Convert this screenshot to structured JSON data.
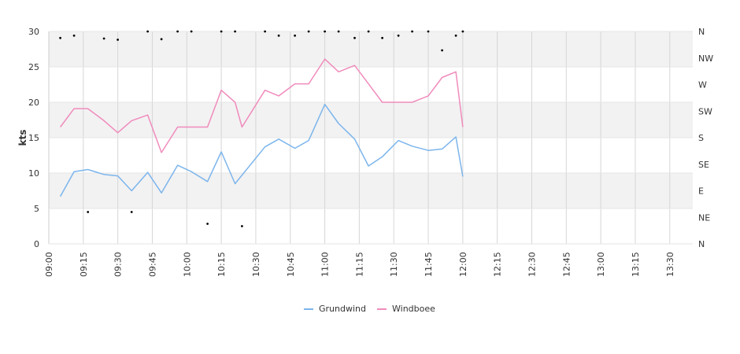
{
  "chart_data": {
    "type": "line",
    "ylabel": "kts",
    "ylim": [
      0,
      30
    ],
    "y_ticks": [
      0,
      5,
      10,
      15,
      20,
      25,
      30
    ],
    "x_start": "09:00",
    "x_end": "13:40",
    "x_tick_labels": [
      "09:00",
      "09:15",
      "09:30",
      "09:45",
      "10:00",
      "10:15",
      "10:30",
      "10:45",
      "11:00",
      "11:15",
      "11:30",
      "11:45",
      "12:00",
      "12:15",
      "12:30",
      "12:45",
      "13:00",
      "13:15",
      "13:30"
    ],
    "direction_axis": {
      "labels": [
        "N",
        "NE",
        "E",
        "SE",
        "S",
        "SW",
        "W",
        "NW",
        "N"
      ],
      "range_degrees": [
        0,
        360
      ]
    },
    "grid": true,
    "band_fill": "#f2f2f2",
    "legend_position": "bottom",
    "series": [
      {
        "name": "Grundwind",
        "color": "#7cb5ec",
        "points": [
          [
            "09:05",
            6.7
          ],
          [
            "09:11",
            10.2
          ],
          [
            "09:17",
            10.5
          ],
          [
            "09:24",
            9.8
          ],
          [
            "09:30",
            9.6
          ],
          [
            "09:36",
            7.5
          ],
          [
            "09:43",
            10.1
          ],
          [
            "09:49",
            7.2
          ],
          [
            "09:56",
            11.1
          ],
          [
            "10:02",
            10.2
          ],
          [
            "10:09",
            8.8
          ],
          [
            "10:15",
            13.0
          ],
          [
            "10:21",
            8.5
          ],
          [
            "10:34",
            13.7
          ],
          [
            "10:40",
            14.8
          ],
          [
            "10:47",
            13.5
          ],
          [
            "10:53",
            14.6
          ],
          [
            "11:00",
            19.7
          ],
          [
            "11:06",
            17.0
          ],
          [
            "11:13",
            14.8
          ],
          [
            "11:19",
            11.0
          ],
          [
            "11:25",
            12.3
          ],
          [
            "11:32",
            14.6
          ],
          [
            "11:38",
            13.8
          ],
          [
            "11:45",
            13.2
          ],
          [
            "11:51",
            13.4
          ],
          [
            "11:57",
            15.1
          ],
          [
            "12:00",
            9.5
          ]
        ]
      },
      {
        "name": "Windboee",
        "color": "#f08bbc",
        "points": [
          [
            "09:05",
            16.5
          ],
          [
            "09:11",
            19.1
          ],
          [
            "09:17",
            19.1
          ],
          [
            "09:24",
            17.4
          ],
          [
            "09:30",
            15.7
          ],
          [
            "09:36",
            17.4
          ],
          [
            "09:43",
            18.2
          ],
          [
            "09:49",
            12.9
          ],
          [
            "09:56",
            16.5
          ],
          [
            "10:02",
            16.5
          ],
          [
            "10:09",
            16.5
          ],
          [
            "10:15",
            21.7
          ],
          [
            "10:21",
            20.0
          ],
          [
            "10:24",
            16.5
          ],
          [
            "10:34",
            21.7
          ],
          [
            "10:40",
            20.9
          ],
          [
            "10:47",
            22.6
          ],
          [
            "10:53",
            22.6
          ],
          [
            "11:00",
            26.1
          ],
          [
            "11:06",
            24.3
          ],
          [
            "11:13",
            25.2
          ],
          [
            "11:19",
            22.6
          ],
          [
            "11:25",
            20.0
          ],
          [
            "11:32",
            20.0
          ],
          [
            "11:38",
            20.0
          ],
          [
            "11:45",
            20.9
          ],
          [
            "11:51",
            23.5
          ],
          [
            "11:57",
            24.3
          ],
          [
            "12:00",
            16.5
          ]
        ]
      }
    ],
    "direction_points": [
      [
        "09:05",
        349
      ],
      [
        "09:11",
        353
      ],
      [
        "09:17",
        54
      ],
      [
        "09:24",
        348
      ],
      [
        "09:30",
        346
      ],
      [
        "09:36",
        54
      ],
      [
        "09:43",
        360
      ],
      [
        "09:49",
        347
      ],
      [
        "09:56",
        360
      ],
      [
        "10:02",
        360
      ],
      [
        "10:09",
        34
      ],
      [
        "10:15",
        360
      ],
      [
        "10:21",
        360
      ],
      [
        "10:24",
        30
      ],
      [
        "10:34",
        360
      ],
      [
        "10:40",
        353
      ],
      [
        "10:47",
        353
      ],
      [
        "10:53",
        360
      ],
      [
        "11:00",
        360
      ],
      [
        "11:06",
        360
      ],
      [
        "11:13",
        349
      ],
      [
        "11:19",
        360
      ],
      [
        "11:25",
        349
      ],
      [
        "11:32",
        353
      ],
      [
        "11:38",
        360
      ],
      [
        "11:45",
        360
      ],
      [
        "11:51",
        328
      ],
      [
        "11:57",
        353
      ],
      [
        "12:00",
        360
      ]
    ]
  }
}
